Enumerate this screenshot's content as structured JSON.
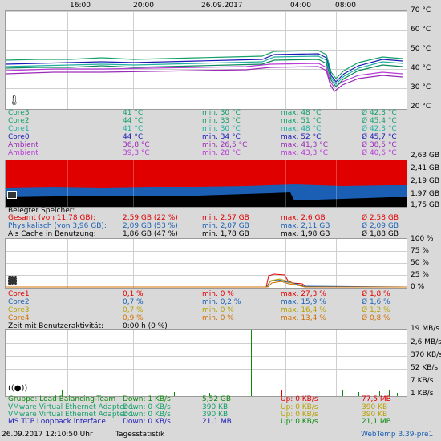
{
  "time_axis": {
    "labels": [
      "16:00",
      "20:00",
      "26.09.2017",
      "04:00",
      "08:00"
    ]
  },
  "temp": {
    "axis_labels": [
      "70 °C",
      "60 °C",
      "50 °C",
      "40 °C",
      "30 °C",
      "20 °C"
    ],
    "rows": [
      {
        "name": "Core3",
        "cur": "41 °C",
        "min": "min. 30 °C",
        "max": "max. 48 °C",
        "avg": "Ø 42,3 °C",
        "color": "#14a06a"
      },
      {
        "name": "Core2",
        "cur": "44 °C",
        "min": "min. 33 °C",
        "max": "max. 51 °C",
        "avg": "Ø 45,4 °C",
        "color": "#14a06a"
      },
      {
        "name": "Core1",
        "cur": "41 °C",
        "min": "min. 30 °C",
        "max": "max. 48 °C",
        "avg": "Ø 42,3 °C",
        "color": "#1fb0a0"
      },
      {
        "name": "Core0",
        "cur": "44 °C",
        "min": "min. 34 °C",
        "max": "max. 52 °C",
        "avg": "Ø 45,7 °C",
        "color": "#1a1ab8"
      },
      {
        "name": "Ambient",
        "cur": "36,8 °C",
        "min": "min. 26,5 °C",
        "max": "max. 41,3 °C",
        "avg": "Ø 38,5 °C",
        "color": "#9a2ab8"
      },
      {
        "name": "Ambient",
        "cur": "39,3 °C",
        "min": "min. 28 °C",
        "max": "max. 43,3 °C",
        "avg": "Ø 40,6 °C",
        "color": "#b83ad8"
      }
    ]
  },
  "mem": {
    "axis_labels": [
      "2,63 GB",
      "2,41 GB",
      "2,19 GB",
      "1,97 GB",
      "1,75 GB"
    ],
    "header": "Belegter Speicher:",
    "rows": [
      {
        "name": "Gesamt (von 11,78 GB):",
        "cur": "2,59 GB (22 %)",
        "min": "min. 2,57 GB",
        "max": "max. 2,6 GB",
        "avg": "Ø 2,58 GB",
        "color": "#e00000"
      },
      {
        "name": "Physikalisch (von 3,96 GB):",
        "cur": "2,09 GB (53 %)",
        "min": "min. 2,07 GB",
        "max": "max. 2,11 GB",
        "avg": "Ø 2,09 GB",
        "color": "#1a5fb4"
      },
      {
        "name": "Als Cache in Benutzung:",
        "cur": "1,86 GB (47 %)",
        "min": "min. 1,78 GB",
        "max": "max. 1,98 GB",
        "avg": "Ø 1,88 GB",
        "color": "#000000"
      }
    ]
  },
  "cpu": {
    "axis_labels": [
      "100 %",
      "75 %",
      "50 %",
      "25 %",
      "0 %"
    ],
    "rows": [
      {
        "name": "Core1",
        "cur": "0,1 %",
        "min": "min. 0 %",
        "max": "max. 27,3 %",
        "avg": "Ø 1,8 %",
        "color": "#e00000"
      },
      {
        "name": "Core2",
        "cur": "0,7 %",
        "min": "min. 0,2 %",
        "max": "max. 15,9 %",
        "avg": "Ø 1,6 %",
        "color": "#1a5fb4"
      },
      {
        "name": "Core3",
        "cur": "0,7 %",
        "min": "min. 0 %",
        "max": "max. 16,4 %",
        "avg": "Ø 1,2 %",
        "color": "#b8a000"
      },
      {
        "name": "Core4",
        "cur": "0,9 %",
        "min": "min. 0 %",
        "max": "max. 13,4 %",
        "avg": "Ø 0,8 %",
        "color": "#d07000"
      }
    ],
    "idle_label": "Zeit mit Benutzeraktivität:",
    "idle_value": "0:00 h (0 %)"
  },
  "net": {
    "axis_labels": [
      "19 MB/s",
      "2,6 MB/s",
      "370 KB/s",
      "52 KB/s",
      "7 KB/s",
      "1 KB/s"
    ],
    "rows": [
      {
        "name": "Gruppe: Load Balancing-Team",
        "down": "Down: 1 KB/s",
        "down_total": "5,52 GB",
        "up": "Up: 0 KB/s",
        "up_total": "77,5 MB",
        "color": "#0a8a0a",
        "up_color": "#e00000"
      },
      {
        "name": "VMware Virtual Ethernet Adapter 1",
        "down": "Down: 0 KB/s",
        "down_total": "390 KB",
        "up": "Up: 0 KB/s",
        "up_total": "390 KB",
        "color": "#14a06a",
        "up_color": "#b8a000"
      },
      {
        "name": "VMware Virtual Ethernet Adapter 1",
        "down": "Down: 0 KB/s",
        "down_total": "390 KB",
        "up": "Up: 0 KB/s",
        "up_total": "390 KB",
        "color": "#14a06a",
        "up_color": "#b8a000"
      },
      {
        "name": "MS TCP Loopback interface",
        "down": "Down: 0 KB/s",
        "down_total": "21,1 MB",
        "up": "Up: 0 KB/s",
        "up_total": "21,1 MB",
        "color": "#1a1ab8",
        "up_color": "#0a8a0a"
      }
    ]
  },
  "status": {
    "datetime": "26.09.2017 12:10:50 Uhr",
    "link": "Tagesstatistik",
    "version": "WebTemp 3.39-pre1"
  },
  "icons": [
    "thermometer-icon",
    "memory-chip-icon",
    "cpu-chip-icon",
    "network-antenna-icon"
  ]
}
